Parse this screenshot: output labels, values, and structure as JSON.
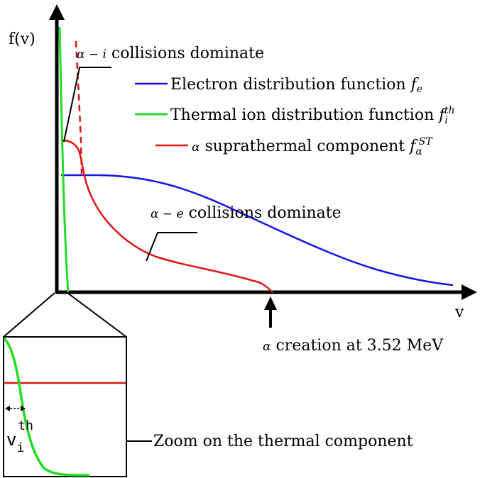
{
  "axes": {
    "y_label": "f(v)",
    "x_label": "v"
  },
  "annotations": {
    "alpha_i": {
      "symbol": "α − i",
      "text": " collisions dominate"
    },
    "alpha_e": {
      "symbol": "α − e",
      "text": " collisions dominate"
    },
    "creation": {
      "symbol": "α",
      "text": " creation at 3.52 MeV"
    },
    "zoom": {
      "text": "Zoom on the thermal component"
    }
  },
  "legend": [
    {
      "text": "Electron distribution function ",
      "sym": "f",
      "sub": "e",
      "sup": "",
      "color": "#1414e6"
    },
    {
      "text": "Thermal ion distribution function ",
      "sym": "f",
      "sub": "i",
      "sup": "th",
      "color": "#22dd22"
    },
    {
      "text": " suprathermal component ",
      "prefix": "α",
      "sym": "f",
      "sub": "α",
      "sup": "ST",
      "color": "#e01414"
    }
  ],
  "inset": {
    "label_main": "v",
    "label_sub": "i",
    "label_sup": "th"
  },
  "colors": {
    "electron": "#1414e6",
    "thermal_ion": "#22dd22",
    "suprathermal": "#e01414",
    "axis": "#000000"
  }
}
